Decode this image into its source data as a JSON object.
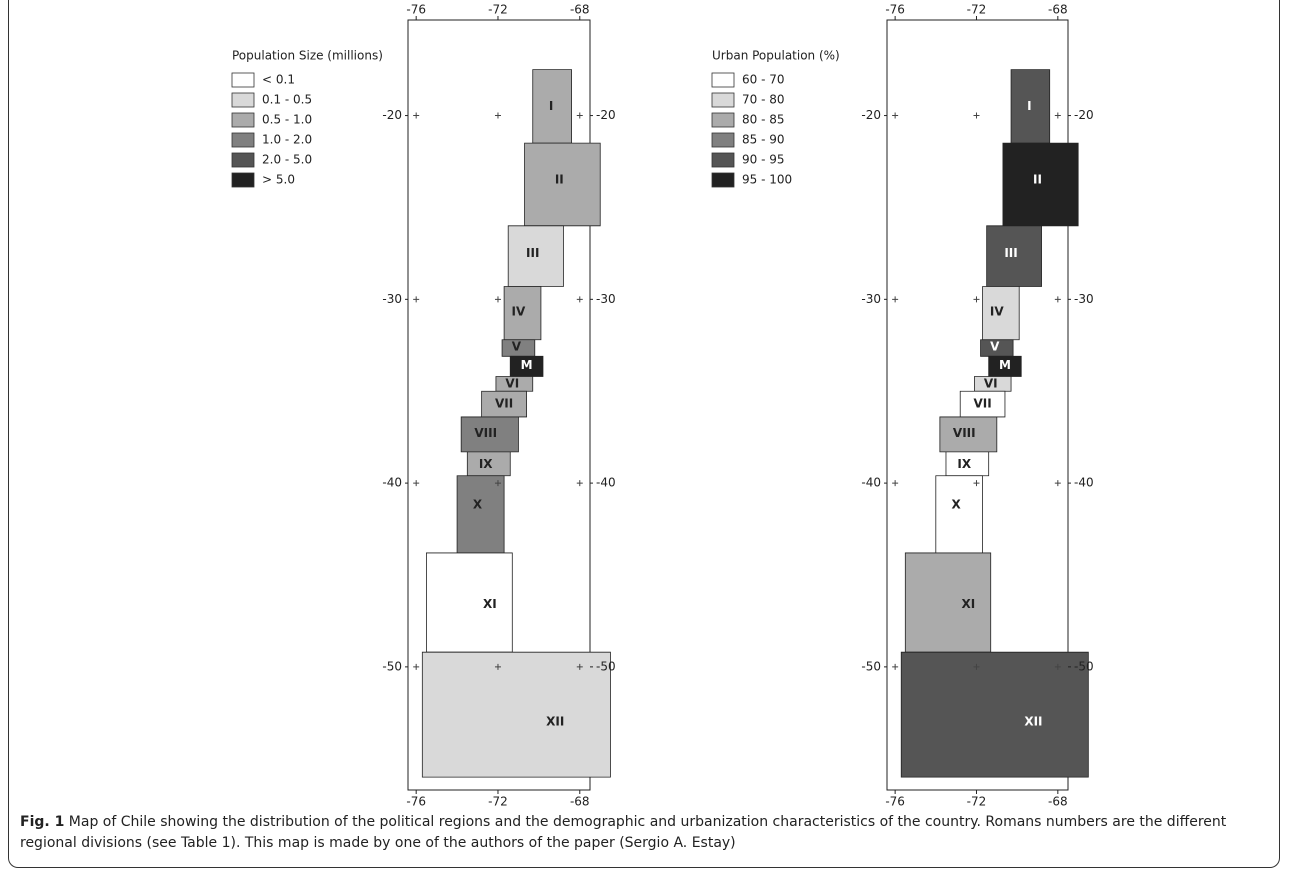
{
  "maps": [
    {
      "legend": {
        "title": "Population Size (millions)",
        "items": [
          {
            "label": "< 0.1",
            "color": "#ffffff"
          },
          {
            "label": "0.1 - 0.5",
            "color": "#d9d9d9"
          },
          {
            "label": "0.5 - 1.0",
            "color": "#ababab"
          },
          {
            "label": "1.0 - 2.0",
            "color": "#808080"
          },
          {
            "label": "2.0 - 5.0",
            "color": "#555555"
          },
          {
            "label": "> 5.0",
            "color": "#222222"
          }
        ]
      },
      "regions": [
        "I",
        "II",
        "III",
        "IV",
        "V",
        "M",
        "VI",
        "VII",
        "VIII",
        "IX",
        "X",
        "XI",
        "XII"
      ]
    },
    {
      "legend": {
        "title": "Urban Population (%)",
        "items": [
          {
            "label": "60 - 70",
            "color": "#ffffff"
          },
          {
            "label": "70 - 80",
            "color": "#d9d9d9"
          },
          {
            "label": "80 - 85",
            "color": "#ababab"
          },
          {
            "label": "85 - 90",
            "color": "#808080"
          },
          {
            "label": "90 - 95",
            "color": "#555555"
          },
          {
            "label": "95 - 100",
            "color": "#222222"
          }
        ]
      },
      "regions": [
        "I",
        "II",
        "III",
        "IV",
        "V",
        "M",
        "VI",
        "VII",
        "VIII",
        "IX",
        "X",
        "XI",
        "XII"
      ]
    }
  ],
  "axes": {
    "xlim": [
      -76.4,
      -67.5
    ],
    "ylim": [
      -14.8,
      -56.7
    ],
    "xticks": [
      -76,
      -72,
      -68
    ],
    "yticks": [
      -20,
      -30,
      -40,
      -50
    ]
  },
  "caption": {
    "label": "Fig. 1",
    "text": "Map of Chile showing the distribution of the political regions and the demographic and urbanization characteristics of the country. Romans numbers are the different regional divisions (see Table 1). This map is made by one of the authors of the paper (Sergio A. Estay)"
  }
}
